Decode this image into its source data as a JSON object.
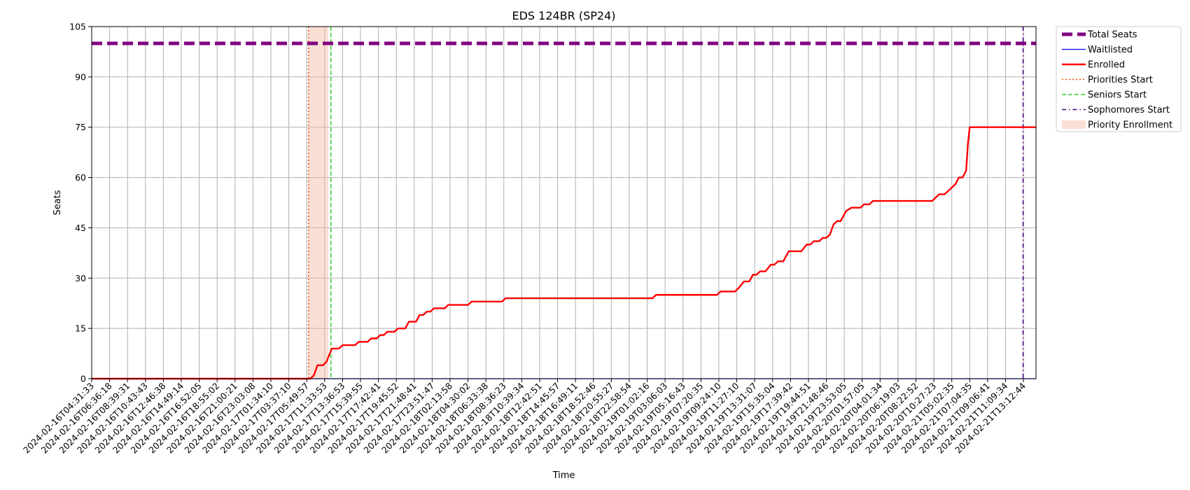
{
  "chart_data": {
    "type": "line",
    "title": "EDS 124BR (SP24)",
    "xlabel": "Time",
    "ylabel": "Seats",
    "ylim": [
      0,
      105
    ],
    "yticks": [
      0,
      15,
      30,
      45,
      60,
      75,
      90,
      105
    ],
    "grid": true,
    "legend_placement": "outside-top-right",
    "colors": {
      "total": "#800080",
      "waitlisted": "#0000ff",
      "enrolled": "#ff0000",
      "priorities": "#ff4500",
      "seniors": "#32cd32",
      "sophomores": "#4b0082",
      "priority_band": "#f4b89f"
    },
    "x_ticks": [
      "2024-02-16T04:31:33",
      "2024-02-16T06:36:18",
      "2024-02-16T08:39:31",
      "2024-02-16T10:43:43",
      "2024-02-16T12:46:38",
      "2024-02-16T14:49:14",
      "2024-02-16T16:52:05",
      "2024-02-16T18:55:02",
      "2024-02-16T21:00:21",
      "2024-02-16T23:03:08",
      "2024-02-17T01:34:10",
      "2024-02-17T03:37:10",
      "2024-02-17T05:49:57",
      "2024-02-17T11:33:53",
      "2024-02-17T13:36:53",
      "2024-02-17T15:39:55",
      "2024-02-17T17:42:41",
      "2024-02-17T19:45:52",
      "2024-02-17T21:48:41",
      "2024-02-17T23:51:47",
      "2024-02-18T02:13:58",
      "2024-02-18T04:30:02",
      "2024-02-18T06:33:38",
      "2024-02-18T08:36:23",
      "2024-02-18T10:39:34",
      "2024-02-18T12:42:51",
      "2024-02-18T14:45:57",
      "2024-02-18T16:49:11",
      "2024-02-18T18:52:46",
      "2024-02-18T20:55:27",
      "2024-02-18T22:58:54",
      "2024-02-19T01:02:16",
      "2024-02-19T03:06:03",
      "2024-02-19T05:16:43",
      "2024-02-19T07:20:35",
      "2024-02-19T09:24:10",
      "2024-02-19T11:27:10",
      "2024-02-19T13:31:07",
      "2024-02-19T15:35:04",
      "2024-02-19T17:39:42",
      "2024-02-19T19:44:51",
      "2024-02-19T21:48:46",
      "2024-02-19T23:53:05",
      "2024-02-20T01:57:05",
      "2024-02-20T04:01:34",
      "2024-02-20T06:19:03",
      "2024-02-20T08:22:52",
      "2024-02-20T10:27:23",
      "2024-02-21T05:02:35",
      "2024-02-21T07:04:35",
      "2024-02-21T09:06:41",
      "2024-02-21T11:09:34",
      "2024-02-21T13:12:44"
    ],
    "x_range": [
      0,
      52.7
    ],
    "series": [
      {
        "name": "Total Seats",
        "key": "total",
        "style": "dashed-thick",
        "points": [
          [
            0,
            100
          ],
          [
            52.7,
            100
          ]
        ]
      },
      {
        "name": "Waitlisted",
        "key": "waitlisted",
        "style": "solid-thin",
        "points": [
          [
            0,
            0
          ],
          [
            52.7,
            0
          ]
        ]
      },
      {
        "name": "Enrolled",
        "key": "enrolled",
        "style": "solid",
        "points": [
          [
            0,
            0
          ],
          [
            12.2,
            0
          ],
          [
            12.4,
            1
          ],
          [
            12.6,
            4
          ],
          [
            12.9,
            4
          ],
          [
            13.1,
            5
          ],
          [
            13.4,
            9
          ],
          [
            13.8,
            9
          ],
          [
            14.0,
            10
          ],
          [
            14.5,
            10
          ],
          [
            14.7,
            10
          ],
          [
            14.9,
            11
          ],
          [
            15.4,
            11
          ],
          [
            15.6,
            12
          ],
          [
            15.9,
            12
          ],
          [
            16.1,
            13
          ],
          [
            16.3,
            13
          ],
          [
            16.5,
            14
          ],
          [
            16.9,
            14
          ],
          [
            17.1,
            15
          ],
          [
            17.5,
            15
          ],
          [
            17.7,
            17
          ],
          [
            18.1,
            17
          ],
          [
            18.3,
            19
          ],
          [
            18.5,
            19
          ],
          [
            18.7,
            20
          ],
          [
            18.9,
            20
          ],
          [
            19.1,
            21
          ],
          [
            19.7,
            21
          ],
          [
            19.9,
            22
          ],
          [
            21.0,
            22
          ],
          [
            21.2,
            23
          ],
          [
            22.9,
            23
          ],
          [
            23.1,
            24
          ],
          [
            31.3,
            24
          ],
          [
            31.5,
            25
          ],
          [
            34.9,
            25
          ],
          [
            35.1,
            26
          ],
          [
            35.9,
            26
          ],
          [
            36.1,
            27
          ],
          [
            36.4,
            29
          ],
          [
            36.7,
            29
          ],
          [
            36.9,
            31
          ],
          [
            37.1,
            31
          ],
          [
            37.3,
            32
          ],
          [
            37.6,
            32
          ],
          [
            37.9,
            34
          ],
          [
            38.1,
            34
          ],
          [
            38.3,
            35
          ],
          [
            38.6,
            35
          ],
          [
            38.9,
            38
          ],
          [
            39.6,
            38
          ],
          [
            39.9,
            40
          ],
          [
            40.1,
            40
          ],
          [
            40.3,
            41
          ],
          [
            40.6,
            41
          ],
          [
            40.8,
            42
          ],
          [
            41.0,
            42
          ],
          [
            41.2,
            43
          ],
          [
            41.4,
            46
          ],
          [
            41.6,
            47
          ],
          [
            41.8,
            47
          ],
          [
            41.9,
            48
          ],
          [
            42.1,
            50
          ],
          [
            42.4,
            51
          ],
          [
            42.9,
            51
          ],
          [
            43.1,
            52
          ],
          [
            43.4,
            52
          ],
          [
            43.6,
            53
          ],
          [
            46.9,
            53
          ],
          [
            47.1,
            54
          ],
          [
            47.3,
            55
          ],
          [
            47.6,
            55
          ],
          [
            47.8,
            56
          ],
          [
            48.0,
            57
          ],
          [
            48.2,
            58
          ],
          [
            48.4,
            60
          ],
          [
            48.6,
            60
          ],
          [
            48.8,
            62
          ],
          [
            48.9,
            70
          ],
          [
            49.0,
            75
          ],
          [
            52.7,
            75
          ]
        ]
      },
      {
        "name": "Priorities Start",
        "key": "priorities",
        "style": "dotted-vline",
        "x": 12.1
      },
      {
        "name": "Seniors Start",
        "key": "seniors",
        "style": "dashed-vline",
        "x": 13.35
      },
      {
        "name": "Sophomores Start",
        "key": "sophomores",
        "style": "dashdot-vline",
        "x": 51.98
      },
      {
        "name": "Priority Enrollment",
        "key": "priority_band",
        "style": "band",
        "x0": 12.1,
        "x1": 13.2
      }
    ]
  }
}
